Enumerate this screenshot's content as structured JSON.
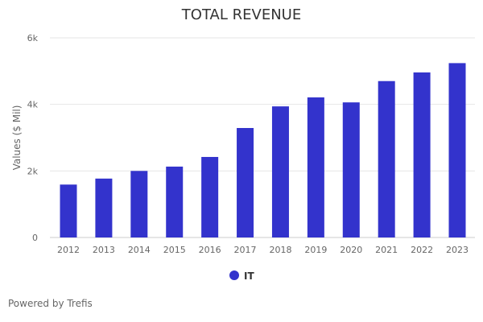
{
  "chart_data": {
    "type": "bar",
    "title": "TOTAL REVENUE",
    "xlabel": "",
    "ylabel": "Values ($ Mil)",
    "categories": [
      "2012",
      "2013",
      "2014",
      "2015",
      "2016",
      "2017",
      "2018",
      "2019",
      "2020",
      "2021",
      "2022",
      "2023"
    ],
    "series": [
      {
        "name": "IT",
        "color": "#3333cc",
        "values": [
          1590,
          1770,
          2000,
          2130,
          2420,
          3290,
          3940,
          4210,
          4060,
          4700,
          4960,
          5240
        ]
      }
    ],
    "ylim": [
      0,
      6000
    ],
    "yticks": [
      {
        "value": 0,
        "label": "0"
      },
      {
        "value": 2000,
        "label": "2k"
      },
      {
        "value": 4000,
        "label": "4k"
      },
      {
        "value": 6000,
        "label": "6k"
      }
    ],
    "grid": true,
    "legend_position": "bottom-center"
  },
  "footer": {
    "credit": "Powered by Trefis"
  },
  "colors": {
    "bar": "#3333cc",
    "grid": "#e6e6e6",
    "axis": "#cccccc"
  }
}
